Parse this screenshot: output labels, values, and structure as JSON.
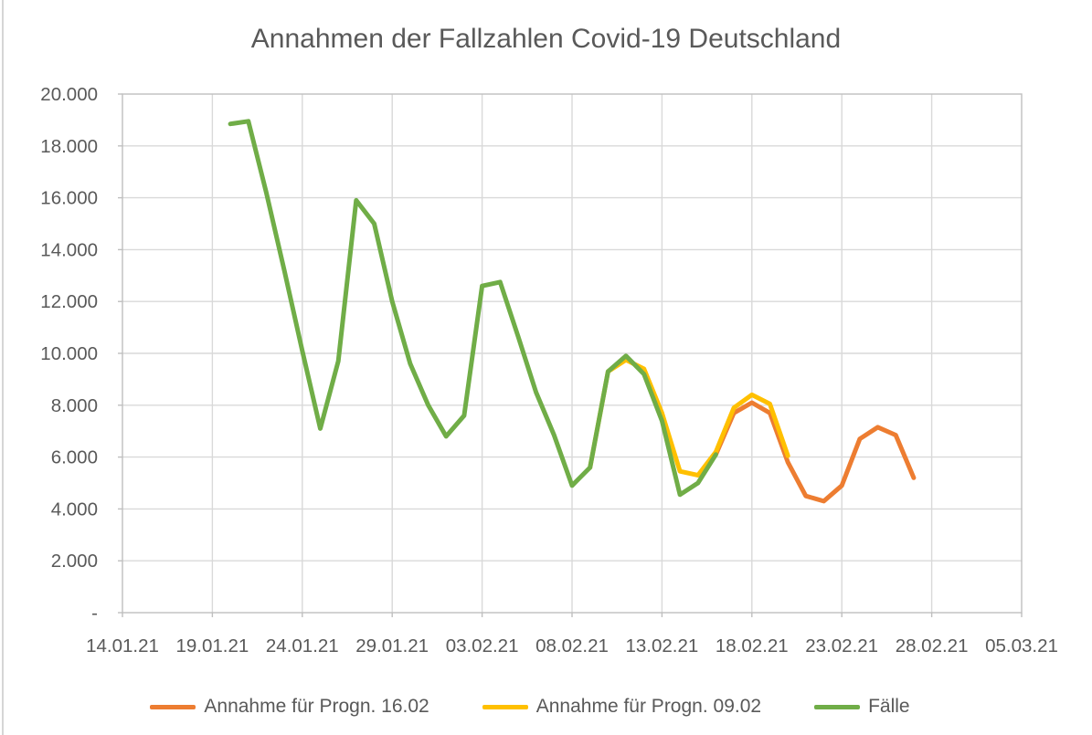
{
  "chart_data": {
    "type": "line",
    "title": "Annahmen der Fallzahlen Covid-19 Deutschland",
    "grid": true,
    "legend_position": "bottom",
    "x_axis": {
      "tick_labels": [
        "14.01.21",
        "19.01.21",
        "24.01.21",
        "29.01.21",
        "03.02.21",
        "08.02.21",
        "13.02.21",
        "18.02.21",
        "23.02.21",
        "28.02.21",
        "05.03.21"
      ],
      "days_per_tick": 5,
      "days_total": 50
    },
    "y_axis": {
      "min": 0,
      "max": 20000,
      "step": 2000,
      "tick_labels": [
        "20.000",
        "18.000",
        "16.000",
        "14.000",
        "12.000",
        "10.000",
        "8.000",
        "6.000",
        "4.000",
        "2.000",
        "-"
      ]
    },
    "series": [
      {
        "name": "Annahme für Progn. 16.02",
        "color": "#ED7D31",
        "points": [
          {
            "date": "16.02.21",
            "day": 33,
            "value": 6100
          },
          {
            "date": "17.02.21",
            "day": 34,
            "value": 7700
          },
          {
            "date": "18.02.21",
            "day": 35,
            "value": 8100
          },
          {
            "date": "19.02.21",
            "day": 36,
            "value": 7700
          },
          {
            "date": "20.02.21",
            "day": 37,
            "value": 5800
          },
          {
            "date": "21.02.21",
            "day": 38,
            "value": 4500
          },
          {
            "date": "22.02.21",
            "day": 39,
            "value": 4300
          },
          {
            "date": "23.02.21",
            "day": 40,
            "value": 4900
          },
          {
            "date": "24.02.21",
            "day": 41,
            "value": 6700
          },
          {
            "date": "25.02.21",
            "day": 42,
            "value": 7150
          },
          {
            "date": "26.02.21",
            "day": 43,
            "value": 6850
          },
          {
            "date": "27.02.21",
            "day": 44,
            "value": 5200
          }
        ]
      },
      {
        "name": "Annahme für Progn. 09.02",
        "color": "#FFC000",
        "points": [
          {
            "date": "09.02.21",
            "day": 26,
            "value": 5600
          },
          {
            "date": "10.02.21",
            "day": 27,
            "value": 9300
          },
          {
            "date": "11.02.21",
            "day": 28,
            "value": 9750
          },
          {
            "date": "12.02.21",
            "day": 29,
            "value": 9400
          },
          {
            "date": "13.02.21",
            "day": 30,
            "value": 7700
          },
          {
            "date": "14.02.21",
            "day": 31,
            "value": 5450
          },
          {
            "date": "15.02.21",
            "day": 32,
            "value": 5300
          },
          {
            "date": "16.02.21",
            "day": 33,
            "value": 6200
          },
          {
            "date": "17.02.21",
            "day": 34,
            "value": 7900
          },
          {
            "date": "18.02.21",
            "day": 35,
            "value": 8400
          },
          {
            "date": "19.02.21",
            "day": 36,
            "value": 8050
          },
          {
            "date": "20.02.21",
            "day": 37,
            "value": 6050
          }
        ]
      },
      {
        "name": "Fälle",
        "color": "#70AD47",
        "points": [
          {
            "date": "20.01.21",
            "day": 6,
            "value": 18850
          },
          {
            "date": "21.01.21",
            "day": 7,
            "value": 18950
          },
          {
            "date": "22.01.21",
            "day": 8,
            "value": 16200
          },
          {
            "date": "23.01.21",
            "day": 9,
            "value": 13200
          },
          {
            "date": "24.01.21",
            "day": 10,
            "value": 10100
          },
          {
            "date": "25.01.21",
            "day": 11,
            "value": 7100
          },
          {
            "date": "26.01.21",
            "day": 12,
            "value": 9700
          },
          {
            "date": "27.01.21",
            "day": 13,
            "value": 15900
          },
          {
            "date": "28.01.21",
            "day": 14,
            "value": 15000
          },
          {
            "date": "29.01.21",
            "day": 15,
            "value": 12000
          },
          {
            "date": "30.01.21",
            "day": 16,
            "value": 9600
          },
          {
            "date": "31.01.21",
            "day": 17,
            "value": 8000
          },
          {
            "date": "01.02.21",
            "day": 18,
            "value": 6800
          },
          {
            "date": "02.02.21",
            "day": 19,
            "value": 7600
          },
          {
            "date": "03.02.21",
            "day": 20,
            "value": 12600
          },
          {
            "date": "04.02.21",
            "day": 21,
            "value": 12750
          },
          {
            "date": "05.02.21",
            "day": 22,
            "value": 10650
          },
          {
            "date": "06.02.21",
            "day": 23,
            "value": 8500
          },
          {
            "date": "07.02.21",
            "day": 24,
            "value": 6850
          },
          {
            "date": "08.02.21",
            "day": 25,
            "value": 4900
          },
          {
            "date": "09.02.21",
            "day": 26,
            "value": 5600
          },
          {
            "date": "10.02.21",
            "day": 27,
            "value": 9300
          },
          {
            "date": "11.02.21",
            "day": 28,
            "value": 9900
          },
          {
            "date": "12.02.21",
            "day": 29,
            "value": 9200
          },
          {
            "date": "13.02.21",
            "day": 30,
            "value": 7400
          },
          {
            "date": "14.02.21",
            "day": 31,
            "value": 4550
          },
          {
            "date": "15.02.21",
            "day": 32,
            "value": 5000
          },
          {
            "date": "16.02.21",
            "day": 33,
            "value": 6100
          }
        ]
      }
    ],
    "colors": {
      "grid_line": "#D9D9D9",
      "plot_border": "#BFBFBF",
      "axis_text": "#595959",
      "title_text": "#595959",
      "background": "#FFFFFF"
    }
  }
}
